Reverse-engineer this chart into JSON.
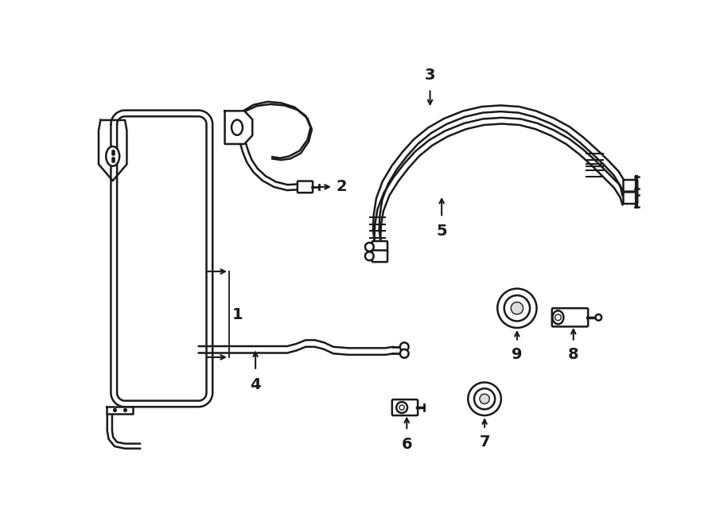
{
  "background_color": "#ffffff",
  "line_color": "#1a1a1a",
  "lw": 1.8,
  "figsize": [
    9.0,
    6.61
  ],
  "dpi": 100
}
